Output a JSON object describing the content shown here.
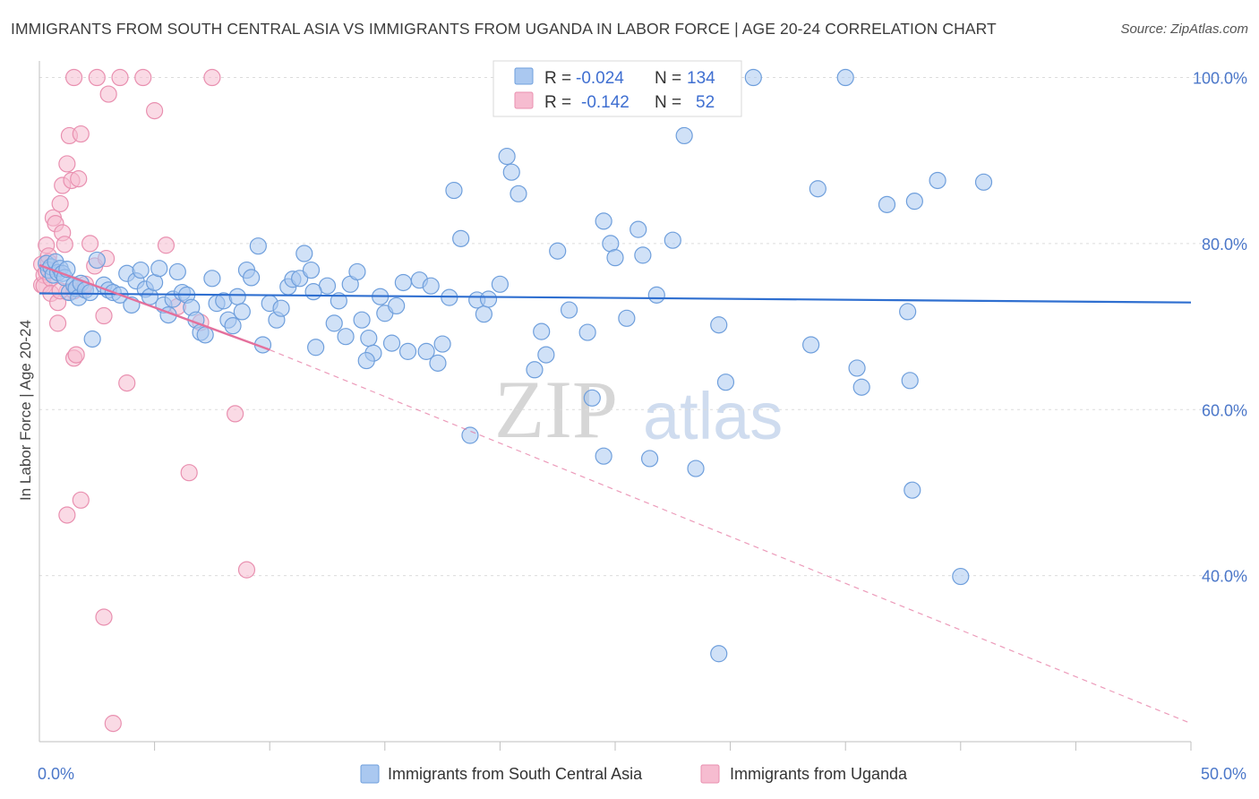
{
  "title": "IMMIGRANTS FROM SOUTH CENTRAL ASIA VS IMMIGRANTS FROM UGANDA IN LABOR FORCE | AGE 20-24 CORRELATION CHART",
  "source": "Source: ZipAtlas.com",
  "watermark": {
    "zip": "ZIP",
    "atlas": "atlas"
  },
  "colors": {
    "blue_fill": "#aac8f0",
    "blue_stroke": "#6f9fdc",
    "blue_line": "#2f6fd0",
    "pink_fill": "#f6bcd0",
    "pink_stroke": "#e990b0",
    "pink_line": "#e4709c",
    "tick_text": "#4b77c9",
    "grid": "#dcdcdc"
  },
  "stats": {
    "blue": {
      "r_label": "R =",
      "r_value": "-0.024",
      "n_label": "N =",
      "n_value": "134"
    },
    "pink": {
      "r_label": "R =",
      "r_value": "-0.142",
      "n_label": "N =",
      "n_value": "52"
    }
  },
  "chart_data": {
    "type": "scatter",
    "title": "IMMIGRANTS FROM SOUTH CENTRAL ASIA VS IMMIGRANTS FROM UGANDA IN LABOR FORCE | AGE 20-24 CORRELATION CHART",
    "xlabel": "",
    "ylabel": "In Labor Force | Age 20-24",
    "xlim": [
      0,
      50
    ],
    "ylim": [
      20,
      102
    ],
    "x_tick_labels": [
      "0.0%",
      "50.0%"
    ],
    "y_ticks": [
      40,
      60,
      80,
      100
    ],
    "y_tick_labels": [
      "40.0%",
      "60.0%",
      "80.0%",
      "100.0%"
    ],
    "legend": [
      "Immigrants from South Central Asia",
      "Immigrants from Uganda"
    ],
    "series": [
      {
        "name": "Immigrants from South Central Asia",
        "color": "#aac8f0",
        "trend": {
          "x": [
            0,
            50
          ],
          "y": [
            74.0,
            72.9
          ],
          "style": "solid"
        },
        "points": [
          [
            0.3,
            77.6
          ],
          [
            0.4,
            76.8
          ],
          [
            0.5,
            77.2
          ],
          [
            0.6,
            76.2
          ],
          [
            0.7,
            77.8
          ],
          [
            0.8,
            76.5
          ],
          [
            0.9,
            77.0
          ],
          [
            1.0,
            76.4
          ],
          [
            1.1,
            75.9
          ],
          [
            1.2,
            76.9
          ],
          [
            1.3,
            74.1
          ],
          [
            1.5,
            75.0
          ],
          [
            1.6,
            74.6
          ],
          [
            1.7,
            73.5
          ],
          [
            1.8,
            75.2
          ],
          [
            2.0,
            74.4
          ],
          [
            2.2,
            74.1
          ],
          [
            2.3,
            68.5
          ],
          [
            2.5,
            78.0
          ],
          [
            2.8,
            75.0
          ],
          [
            3.0,
            74.4
          ],
          [
            3.2,
            74.1
          ],
          [
            3.5,
            73.8
          ],
          [
            3.8,
            76.4
          ],
          [
            4.0,
            72.6
          ],
          [
            4.2,
            75.5
          ],
          [
            4.4,
            76.8
          ],
          [
            4.6,
            74.5
          ],
          [
            4.8,
            73.6
          ],
          [
            5.0,
            75.3
          ],
          [
            5.2,
            77.0
          ],
          [
            5.4,
            72.6
          ],
          [
            5.6,
            71.4
          ],
          [
            5.8,
            73.3
          ],
          [
            6.0,
            76.6
          ],
          [
            6.2,
            74.1
          ],
          [
            6.4,
            73.8
          ],
          [
            6.6,
            72.3
          ],
          [
            6.8,
            70.8
          ],
          [
            7.0,
            69.3
          ],
          [
            7.2,
            69.0
          ],
          [
            7.5,
            75.8
          ],
          [
            7.7,
            72.8
          ],
          [
            8.0,
            73.1
          ],
          [
            8.2,
            70.8
          ],
          [
            8.4,
            70.1
          ],
          [
            8.6,
            73.6
          ],
          [
            8.8,
            71.8
          ],
          [
            9.0,
            76.8
          ],
          [
            9.2,
            75.9
          ],
          [
            9.5,
            79.7
          ],
          [
            9.7,
            67.8
          ],
          [
            10.0,
            72.8
          ],
          [
            10.3,
            70.8
          ],
          [
            10.5,
            72.2
          ],
          [
            10.8,
            74.8
          ],
          [
            11.0,
            75.7
          ],
          [
            11.3,
            75.8
          ],
          [
            11.5,
            78.8
          ],
          [
            11.8,
            76.8
          ],
          [
            12.0,
            67.5
          ],
          [
            12.5,
            74.9
          ],
          [
            13.0,
            73.1
          ],
          [
            13.3,
            68.8
          ],
          [
            13.5,
            75.1
          ],
          [
            13.8,
            76.6
          ],
          [
            14.0,
            70.8
          ],
          [
            14.3,
            68.6
          ],
          [
            14.5,
            66.8
          ],
          [
            14.8,
            73.6
          ],
          [
            15.0,
            71.6
          ],
          [
            15.3,
            68.0
          ],
          [
            15.5,
            72.5
          ],
          [
            15.8,
            75.3
          ],
          [
            16.0,
            67.0
          ],
          [
            16.5,
            75.6
          ],
          [
            17.0,
            74.9
          ],
          [
            17.3,
            65.6
          ],
          [
            17.5,
            67.9
          ],
          [
            17.8,
            73.5
          ],
          [
            18.0,
            86.4
          ],
          [
            18.3,
            80.6
          ],
          [
            18.7,
            56.9
          ],
          [
            19.0,
            73.2
          ],
          [
            19.3,
            71.5
          ],
          [
            19.5,
            73.3
          ],
          [
            20.0,
            75.1
          ],
          [
            20.3,
            90.5
          ],
          [
            20.5,
            88.6
          ],
          [
            20.8,
            86.0
          ],
          [
            21.5,
            64.8
          ],
          [
            22.0,
            66.6
          ],
          [
            22.5,
            79.1
          ],
          [
            23.0,
            72.0
          ],
          [
            23.8,
            69.3
          ],
          [
            24.0,
            61.4
          ],
          [
            24.5,
            82.7
          ],
          [
            24.8,
            80.0
          ],
          [
            25.0,
            78.3
          ],
          [
            25.5,
            71.0
          ],
          [
            26.0,
            81.7
          ],
          [
            26.2,
            78.6
          ],
          [
            26.5,
            54.1
          ],
          [
            26.8,
            73.8
          ],
          [
            27.5,
            80.4
          ],
          [
            28.0,
            93.0
          ],
          [
            28.5,
            52.9
          ],
          [
            29.5,
            70.2
          ],
          [
            29.8,
            63.3
          ],
          [
            31.0,
            100.0
          ],
          [
            33.5,
            67.8
          ],
          [
            33.8,
            86.6
          ],
          [
            35.0,
            100.0
          ],
          [
            35.5,
            65.0
          ],
          [
            35.7,
            62.7
          ],
          [
            36.8,
            84.7
          ],
          [
            37.7,
            71.8
          ],
          [
            37.8,
            63.5
          ],
          [
            37.9,
            50.3
          ],
          [
            38.0,
            85.1
          ],
          [
            39.0,
            87.6
          ],
          [
            40.0,
            39.9
          ],
          [
            41.0,
            87.4
          ],
          [
            29.5,
            30.6
          ],
          [
            24.5,
            54.4
          ],
          [
            21.8,
            69.4
          ],
          [
            16.8,
            67.0
          ],
          [
            14.2,
            65.9
          ],
          [
            12.8,
            70.4
          ],
          [
            11.9,
            74.2
          ]
        ]
      },
      {
        "name": "Immigrants from Uganda",
        "color": "#f6bcd0",
        "trend": {
          "x": [
            0,
            10
          ],
          "y": [
            77.4,
            67.2
          ],
          "style": "solid"
        },
        "trend_extension": {
          "x": [
            10,
            50
          ],
          "y": [
            67.2,
            22.2
          ],
          "style": "dashed"
        },
        "points": [
          [
            0.1,
            77.5
          ],
          [
            0.1,
            75.0
          ],
          [
            0.2,
            76.2
          ],
          [
            0.2,
            74.9
          ],
          [
            0.3,
            76.6
          ],
          [
            0.3,
            79.8
          ],
          [
            0.4,
            77.8
          ],
          [
            0.4,
            78.5
          ],
          [
            0.5,
            75.8
          ],
          [
            0.5,
            74.0
          ],
          [
            0.6,
            83.1
          ],
          [
            0.7,
            82.4
          ],
          [
            0.8,
            72.9
          ],
          [
            0.8,
            70.4
          ],
          [
            0.9,
            84.8
          ],
          [
            1.0,
            87.0
          ],
          [
            1.0,
            81.3
          ],
          [
            1.1,
            79.9
          ],
          [
            1.2,
            89.6
          ],
          [
            1.2,
            74.2
          ],
          [
            1.3,
            93.0
          ],
          [
            1.4,
            87.6
          ],
          [
            1.5,
            66.2
          ],
          [
            1.5,
            74.3
          ],
          [
            1.6,
            66.6
          ],
          [
            1.7,
            87.8
          ],
          [
            1.8,
            93.2
          ],
          [
            1.8,
            49.1
          ],
          [
            1.2,
            47.3
          ],
          [
            1.5,
            100.0
          ],
          [
            2.4,
            77.3
          ],
          [
            2.5,
            100.0
          ],
          [
            2.8,
            71.3
          ],
          [
            3.0,
            98.0
          ],
          [
            3.5,
            100.0
          ],
          [
            4.5,
            100.0
          ],
          [
            5.0,
            96.0
          ],
          [
            5.5,
            79.8
          ],
          [
            6.0,
            72.4
          ],
          [
            6.5,
            52.4
          ],
          [
            7.0,
            70.5
          ],
          [
            7.5,
            100.0
          ],
          [
            8.5,
            59.5
          ],
          [
            9.0,
            40.7
          ],
          [
            2.8,
            35.0
          ],
          [
            3.2,
            22.2
          ],
          [
            3.8,
            63.2
          ],
          [
            2.2,
            80.0
          ],
          [
            1.9,
            74.5
          ],
          [
            0.9,
            74.3
          ],
          [
            2.9,
            78.2
          ],
          [
            2.0,
            75.1
          ]
        ]
      }
    ]
  },
  "bottom_legend": {
    "blue_label": "Immigrants from South Central Asia",
    "pink_label": "Immigrants from Uganda"
  }
}
